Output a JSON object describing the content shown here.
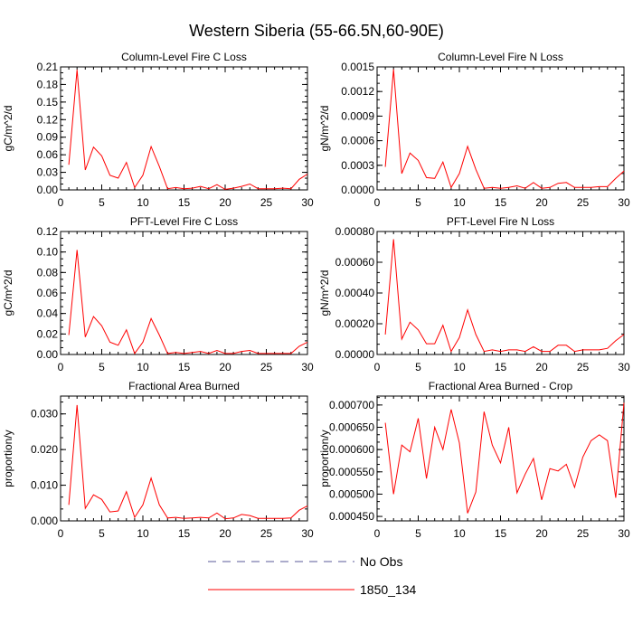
{
  "figure": {
    "title": "Western Siberia (55-66.5N,60-90E)",
    "legend": [
      {
        "label": "No Obs",
        "style": "dashed",
        "color": "#5a5a9a"
      },
      {
        "label": "1850_134",
        "style": "solid",
        "color": "#ff0000"
      }
    ]
  },
  "chart_data": [
    {
      "type": "line",
      "title": "Column-Level Fire C Loss",
      "xlabel": "",
      "ylabel": "gC/m^2/d",
      "xlim": [
        0,
        30
      ],
      "ylim": [
        0,
        0.21
      ],
      "xticks": [
        0,
        5,
        10,
        15,
        20,
        25,
        30
      ],
      "yticks": [
        "0.00",
        "0.03",
        "0.06",
        "0.09",
        "0.12",
        "0.15",
        "0.18",
        "0.21"
      ],
      "x": [
        1,
        2,
        3,
        4,
        5,
        6,
        7,
        8,
        9,
        10,
        11,
        12,
        13,
        14,
        15,
        16,
        17,
        18,
        19,
        20,
        21,
        22,
        23,
        24,
        25,
        26,
        27,
        28,
        29,
        30
      ],
      "series": [
        {
          "name": "1850_134",
          "color": "#ff0000",
          "values": [
            0.043,
            0.205,
            0.034,
            0.073,
            0.058,
            0.025,
            0.02,
            0.047,
            0.004,
            0.025,
            0.074,
            0.04,
            0.002,
            0.004,
            0.002,
            0.003,
            0.006,
            0.002,
            0.009,
            0.001,
            0.003,
            0.006,
            0.01,
            0.002,
            0.002,
            0.002,
            0.003,
            0.002,
            0.018,
            0.027
          ]
        }
      ]
    },
    {
      "type": "line",
      "title": "Column-Level Fire N Loss",
      "xlabel": "",
      "ylabel": "gN/m^2/d",
      "xlim": [
        0,
        30
      ],
      "ylim": [
        0,
        0.0015
      ],
      "xticks": [
        0,
        5,
        10,
        15,
        20,
        25,
        30
      ],
      "yticks": [
        "0.0000",
        "0.0003",
        "0.0006",
        "0.0009",
        "0.0012",
        "0.0015"
      ],
      "x": [
        1,
        2,
        3,
        4,
        5,
        6,
        7,
        8,
        9,
        10,
        11,
        12,
        13,
        14,
        15,
        16,
        17,
        18,
        19,
        20,
        21,
        22,
        23,
        24,
        25,
        26,
        27,
        28,
        29,
        30
      ],
      "series": [
        {
          "name": "1850_134",
          "color": "#ff0000",
          "values": [
            0.00028,
            0.00147,
            0.0002,
            0.00045,
            0.00036,
            0.00015,
            0.00014,
            0.00034,
            3e-05,
            0.0002,
            0.00053,
            0.00025,
            2e-05,
            3e-05,
            2e-05,
            3e-05,
            5e-05,
            2e-05,
            9e-05,
            2e-05,
            3e-05,
            8e-05,
            9e-05,
            3e-05,
            3e-05,
            3e-05,
            4e-05,
            4e-05,
            0.00014,
            0.00023
          ]
        }
      ]
    },
    {
      "type": "line",
      "title": "PFT-Level Fire C Loss",
      "xlabel": "",
      "ylabel": "gC/m^2/d",
      "xlim": [
        0,
        30
      ],
      "ylim": [
        0,
        0.12
      ],
      "xticks": [
        0,
        5,
        10,
        15,
        20,
        25,
        30
      ],
      "yticks": [
        "0.00",
        "0.02",
        "0.04",
        "0.06",
        "0.08",
        "0.10",
        "0.12"
      ],
      "x": [
        1,
        2,
        3,
        4,
        5,
        6,
        7,
        8,
        9,
        10,
        11,
        12,
        13,
        14,
        15,
        16,
        17,
        18,
        19,
        20,
        21,
        22,
        23,
        24,
        25,
        26,
        27,
        28,
        29,
        30
      ],
      "series": [
        {
          "name": "1850_134",
          "color": "#ff0000",
          "values": [
            0.019,
            0.102,
            0.017,
            0.037,
            0.028,
            0.012,
            0.009,
            0.024,
            0.001,
            0.012,
            0.035,
            0.019,
            0.001,
            0.002,
            0.001,
            0.002,
            0.003,
            0.001,
            0.004,
            0.001,
            0.001,
            0.003,
            0.004,
            0.001,
            0.001,
            0.001,
            0.001,
            0.001,
            0.008,
            0.012
          ]
        }
      ]
    },
    {
      "type": "line",
      "title": "PFT-Level Fire N Loss",
      "xlabel": "",
      "ylabel": "gN/m^2/d",
      "xlim": [
        0,
        30
      ],
      "ylim": [
        0,
        0.0008
      ],
      "xticks": [
        0,
        5,
        10,
        15,
        20,
        25,
        30
      ],
      "yticks": [
        "0.00000",
        "0.00020",
        "0.00040",
        "0.00060",
        "0.00080"
      ],
      "x": [
        1,
        2,
        3,
        4,
        5,
        6,
        7,
        8,
        9,
        10,
        11,
        12,
        13,
        14,
        15,
        16,
        17,
        18,
        19,
        20,
        21,
        22,
        23,
        24,
        25,
        26,
        27,
        28,
        29,
        30
      ],
      "series": [
        {
          "name": "1850_134",
          "color": "#ff0000",
          "values": [
            0.00013,
            0.00075,
            0.0001,
            0.00021,
            0.00016,
            7e-05,
            7e-05,
            0.00019,
            2e-05,
            0.00011,
            0.00029,
            0.00013,
            2e-05,
            3e-05,
            2e-05,
            3e-05,
            3e-05,
            2e-05,
            5e-05,
            2e-05,
            2e-05,
            6e-05,
            6e-05,
            2e-05,
            3e-05,
            3e-05,
            3e-05,
            4e-05,
            9e-05,
            0.00013
          ]
        }
      ]
    },
    {
      "type": "line",
      "title": "Fractional Area Burned",
      "xlabel": "",
      "ylabel": "proportion/y",
      "xlim": [
        0,
        30
      ],
      "ylim": [
        0,
        0.035
      ],
      "xticks": [
        0,
        5,
        10,
        15,
        20,
        25,
        30
      ],
      "yticks": [
        "0.000",
        "0.010",
        "0.020",
        "0.030"
      ],
      "x": [
        1,
        2,
        3,
        4,
        5,
        6,
        7,
        8,
        9,
        10,
        11,
        12,
        13,
        14,
        15,
        16,
        17,
        18,
        19,
        20,
        21,
        22,
        23,
        24,
        25,
        26,
        27,
        28,
        29,
        30
      ],
      "series": [
        {
          "name": "1850_134",
          "color": "#ff0000",
          "values": [
            0.0045,
            0.0325,
            0.0035,
            0.0073,
            0.006,
            0.0025,
            0.0028,
            0.0082,
            0.001,
            0.0045,
            0.012,
            0.0045,
            0.0008,
            0.001,
            0.0007,
            0.0008,
            0.001,
            0.0008,
            0.0022,
            0.0006,
            0.0008,
            0.0018,
            0.0015,
            0.0007,
            0.0007,
            0.0007,
            0.0007,
            0.0008,
            0.003,
            0.0042
          ]
        }
      ]
    },
    {
      "type": "line",
      "title": "Fractional Area Burned - Crop",
      "xlabel": "",
      "ylabel": "proportion/y",
      "xlim": [
        0,
        30
      ],
      "ylim": [
        0.00044,
        0.00072
      ],
      "xticks": [
        0,
        5,
        10,
        15,
        20,
        25,
        30
      ],
      "yticks": [
        "0.000450",
        "0.000500",
        "0.000550",
        "0.000600",
        "0.000650",
        "0.000700"
      ],
      "x": [
        1,
        2,
        3,
        4,
        5,
        6,
        7,
        8,
        9,
        10,
        11,
        12,
        13,
        14,
        15,
        16,
        17,
        18,
        19,
        20,
        21,
        22,
        23,
        24,
        25,
        26,
        27,
        28,
        29,
        30
      ],
      "series": [
        {
          "name": "1850_134",
          "color": "#ff0000",
          "values": [
            0.00066,
            0.0005,
            0.00061,
            0.000595,
            0.00067,
            0.000535,
            0.00065,
            0.0006,
            0.00069,
            0.000615,
            0.000457,
            0.000505,
            0.000685,
            0.00061,
            0.00057,
            0.00065,
            0.000503,
            0.000545,
            0.00058,
            0.000487,
            0.000557,
            0.000552,
            0.000567,
            0.000515,
            0.000583,
            0.00062,
            0.000633,
            0.00062,
            0.000492,
            0.000705
          ]
        }
      ]
    }
  ]
}
